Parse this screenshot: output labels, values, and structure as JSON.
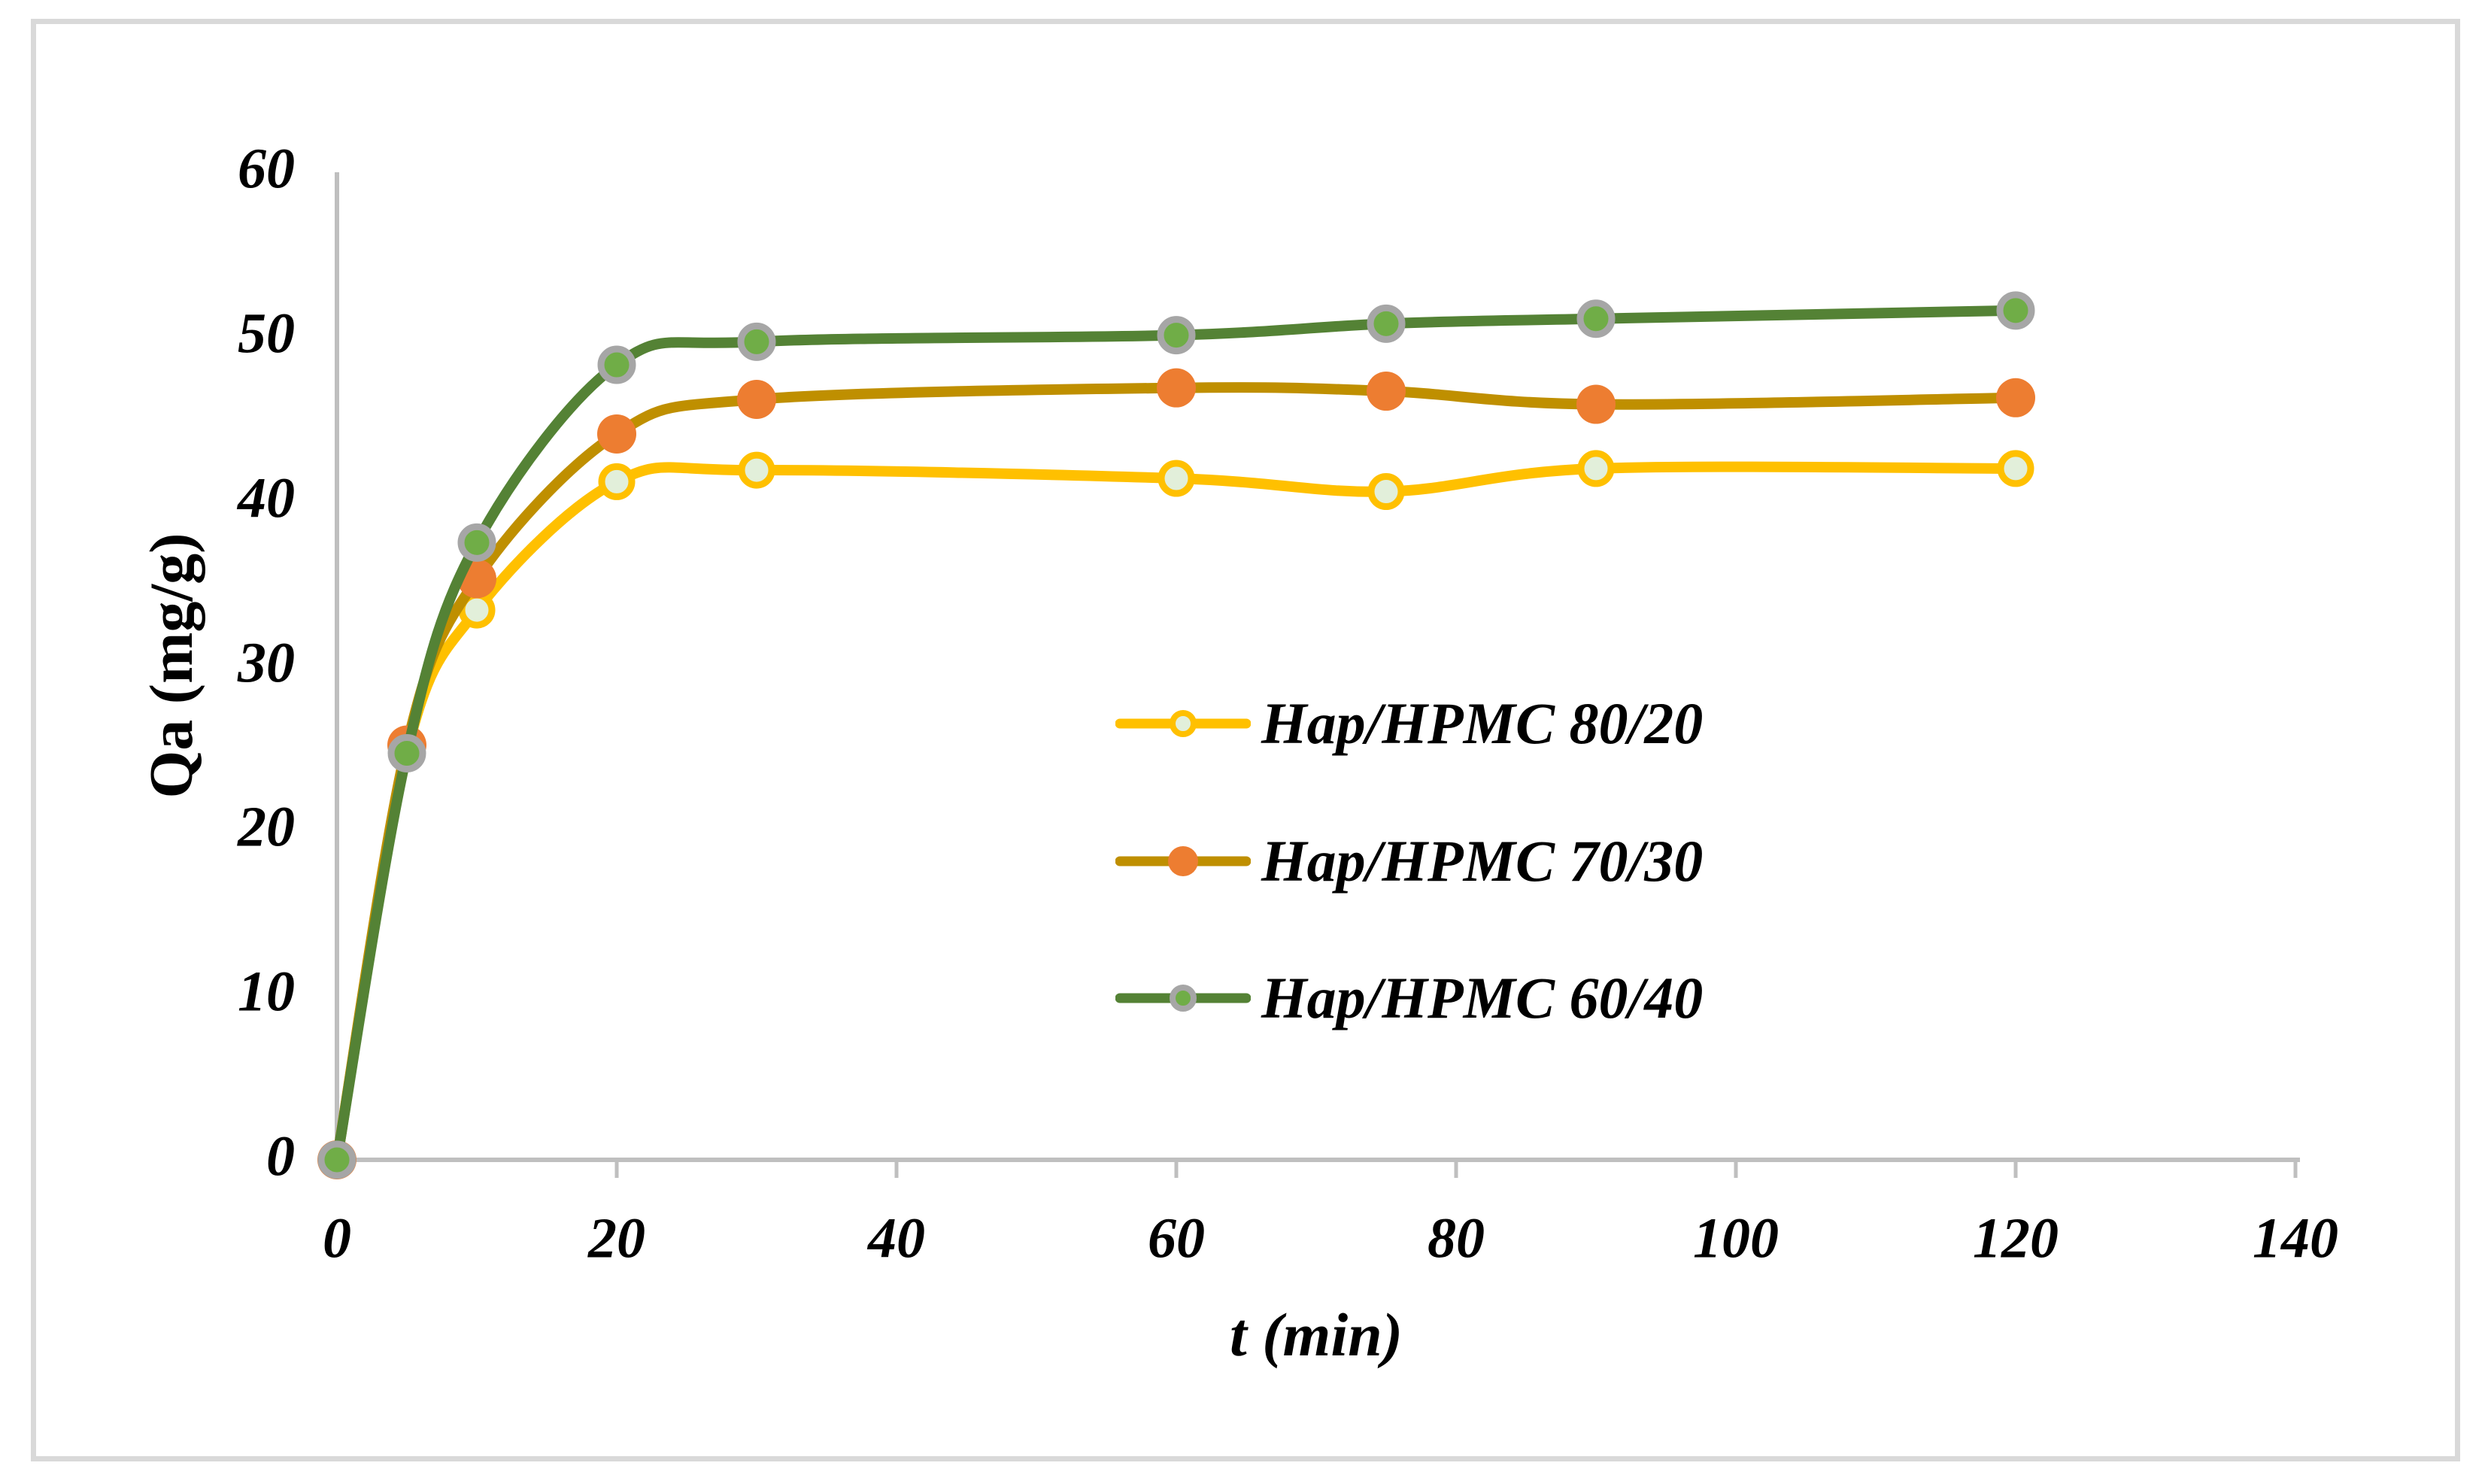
{
  "chart_data": {
    "type": "line",
    "title": "",
    "xlabel": "t (min)",
    "ylabel": "Qa (mg/g)",
    "x": [
      0,
      5,
      10,
      20,
      30,
      60,
      75,
      90,
      120
    ],
    "series": [
      {
        "name": "Hap/HPMC 80/20",
        "values": [
          0,
          24.8,
          33.4,
          41.2,
          41.9,
          41.4,
          40.6,
          42.0,
          42.0
        ],
        "line_color": "#FFC000",
        "marker_fill": "#E2EFDA",
        "marker_ring": "#FFC000"
      },
      {
        "name": "Hap/HPMC 70/30",
        "values": [
          0,
          25.2,
          35.3,
          44.1,
          46.2,
          46.9,
          46.7,
          45.9,
          46.3
        ],
        "line_color": "#BF8F00",
        "marker_fill": "#ED7D31",
        "marker_ring": ""
      },
      {
        "name": "Hap/HPMC 60/40",
        "values": [
          0,
          24.7,
          37.5,
          48.3,
          49.7,
          50.1,
          50.8,
          51.1,
          51.6
        ],
        "line_color": "#548235",
        "marker_fill": "#70AD47",
        "marker_ring": "#A6A6A6"
      }
    ],
    "x_ticks": [
      0,
      20,
      40,
      60,
      80,
      100,
      120,
      140
    ],
    "y_ticks": [
      0,
      10,
      20,
      30,
      40,
      50,
      60
    ],
    "xlim": [
      0,
      140
    ],
    "ylim": [
      0,
      60
    ],
    "grid": "off",
    "smoothed_lines": true,
    "legend_position": "inside-right",
    "axis_color": "#BFBFBF",
    "frame_color": "#D9D9D9",
    "text_color": "#000000"
  }
}
